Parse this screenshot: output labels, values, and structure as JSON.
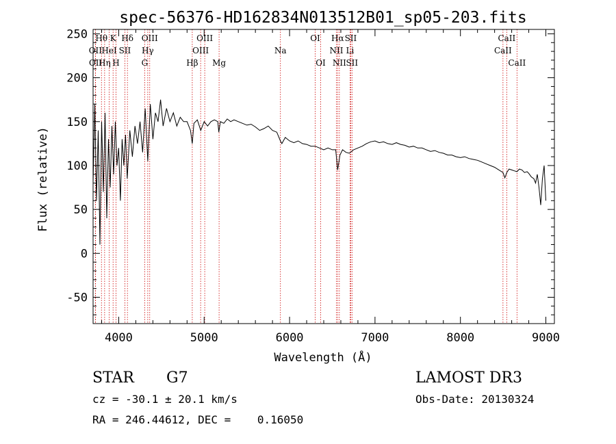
{
  "chart_data": {
    "type": "line",
    "title": "spec-56376-HD162834N013512B01_sp05-203.fits",
    "xlabel": "Wavelength (Å)",
    "ylabel": "Flux (relative)",
    "xlim": [
      3700,
      9100
    ],
    "ylim": [
      -80,
      255
    ],
    "xticks": [
      4000,
      5000,
      6000,
      7000,
      8000,
      9000
    ],
    "yticks": [
      -50,
      0,
      50,
      100,
      150,
      200,
      250
    ],
    "grid": false,
    "series": [
      {
        "name": "flux",
        "x": [
          3700,
          3720,
          3740,
          3760,
          3780,
          3800,
          3820,
          3840,
          3860,
          3880,
          3900,
          3920,
          3940,
          3960,
          3980,
          4000,
          4020,
          4040,
          4060,
          4080,
          4100,
          4130,
          4160,
          4190,
          4220,
          4250,
          4280,
          4310,
          4340,
          4370,
          4400,
          4430,
          4460,
          4490,
          4520,
          4560,
          4600,
          4640,
          4680,
          4720,
          4760,
          4800,
          4840,
          4861,
          4880,
          4920,
          4960,
          5000,
          5040,
          5080,
          5120,
          5160,
          5172,
          5190,
          5230,
          5270,
          5310,
          5350,
          5400,
          5450,
          5500,
          5550,
          5600,
          5650,
          5700,
          5750,
          5800,
          5850,
          5893,
          5910,
          5950,
          6000,
          6050,
          6100,
          6150,
          6200,
          6250,
          6300,
          6350,
          6400,
          6450,
          6500,
          6540,
          6563,
          6590,
          6620,
          6660,
          6700,
          6750,
          6800,
          6850,
          6900,
          6950,
          7000,
          7050,
          7100,
          7150,
          7200,
          7250,
          7300,
          7350,
          7400,
          7450,
          7500,
          7550,
          7600,
          7650,
          7700,
          7750,
          7800,
          7850,
          7900,
          7950,
          8000,
          8050,
          8100,
          8150,
          8200,
          8250,
          8300,
          8350,
          8400,
          8450,
          8498,
          8520,
          8542,
          8570,
          8600,
          8630,
          8662,
          8690,
          8720,
          8750,
          8780,
          8800,
          8830,
          8860,
          8880,
          8900,
          8920,
          8940,
          8960,
          8980,
          9000
        ],
        "y": [
          80,
          170,
          60,
          140,
          10,
          150,
          70,
          160,
          40,
          130,
          75,
          145,
          90,
          150,
          100,
          120,
          60,
          130,
          100,
          135,
          85,
          140,
          110,
          145,
          125,
          150,
          115,
          165,
          105,
          170,
          130,
          160,
          150,
          175,
          145,
          165,
          150,
          160,
          145,
          155,
          150,
          150,
          140,
          125,
          148,
          152,
          140,
          150,
          145,
          150,
          152,
          150,
          138,
          150,
          148,
          153,
          150,
          152,
          150,
          148,
          146,
          147,
          144,
          140,
          142,
          145,
          140,
          138,
          128,
          125,
          132,
          128,
          126,
          128,
          125,
          124,
          122,
          122,
          120,
          118,
          120,
          118,
          118,
          95,
          112,
          118,
          115,
          114,
          118,
          120,
          122,
          125,
          127,
          128,
          126,
          127,
          125,
          124,
          126,
          124,
          123,
          121,
          122,
          120,
          120,
          118,
          116,
          117,
          115,
          114,
          112,
          112,
          110,
          109,
          110,
          108,
          107,
          106,
          104,
          102,
          100,
          98,
          95,
          92,
          86,
          92,
          96,
          95,
          94,
          93,
          96,
          95,
          92,
          93,
          91,
          87,
          85,
          80,
          90,
          75,
          55,
          85,
          100,
          60
        ]
      }
    ],
    "spectral_lines": [
      {
        "label": "Hθ",
        "x": 3798,
        "row": 1
      },
      {
        "label": "K",
        "x": 3934,
        "row": 1
      },
      {
        "label": "Hδ",
        "x": 4102,
        "row": 1
      },
      {
        "label": "OIII",
        "x": 4363,
        "row": 1
      },
      {
        "label": "OIII",
        "x": 5007,
        "row": 1
      },
      {
        "label": "OI",
        "x": 6300,
        "row": 1
      },
      {
        "label": "Hα",
        "x": 6563,
        "row": 1
      },
      {
        "label": "SII",
        "x": 6716,
        "row": 1
      },
      {
        "label": "CaII",
        "x": 8542,
        "row": 1
      },
      {
        "label": "OII",
        "x": 3727,
        "row": 2
      },
      {
        "label": "HeI",
        "x": 3889,
        "row": 2
      },
      {
        "label": "SII",
        "x": 4072,
        "row": 2
      },
      {
        "label": "Hγ",
        "x": 4340,
        "row": 2
      },
      {
        "label": "OIII",
        "x": 4959,
        "row": 2
      },
      {
        "label": "Na",
        "x": 5893,
        "row": 2
      },
      {
        "label": "NII",
        "x": 6548,
        "row": 2
      },
      {
        "label": "Li",
        "x": 6708,
        "row": 2
      },
      {
        "label": "CaII",
        "x": 8498,
        "row": 2
      },
      {
        "label": "OII",
        "x": 3729,
        "row": 3
      },
      {
        "label": "Hη",
        "x": 3835,
        "row": 3
      },
      {
        "label": "H",
        "x": 3968,
        "row": 3
      },
      {
        "label": "G",
        "x": 4304,
        "row": 3
      },
      {
        "label": "Hβ",
        "x": 4861,
        "row": 3
      },
      {
        "label": "Mg",
        "x": 5175,
        "row": 3
      },
      {
        "label": "OI",
        "x": 6364,
        "row": 3
      },
      {
        "label": "NII",
        "x": 6583,
        "row": 3
      },
      {
        "label": "SII",
        "x": 6731,
        "row": 3
      },
      {
        "label": "CaII",
        "x": 8662,
        "row": 3
      }
    ]
  },
  "info": {
    "object_class": "STAR",
    "subclass": "G7",
    "survey": "LAMOST DR3",
    "redshift": "cz = -30.1 ± 20.1 km/s",
    "obs_date": "Obs-Date: 20130324",
    "coords": "RA = 246.44612, DEC =    0.16050"
  }
}
